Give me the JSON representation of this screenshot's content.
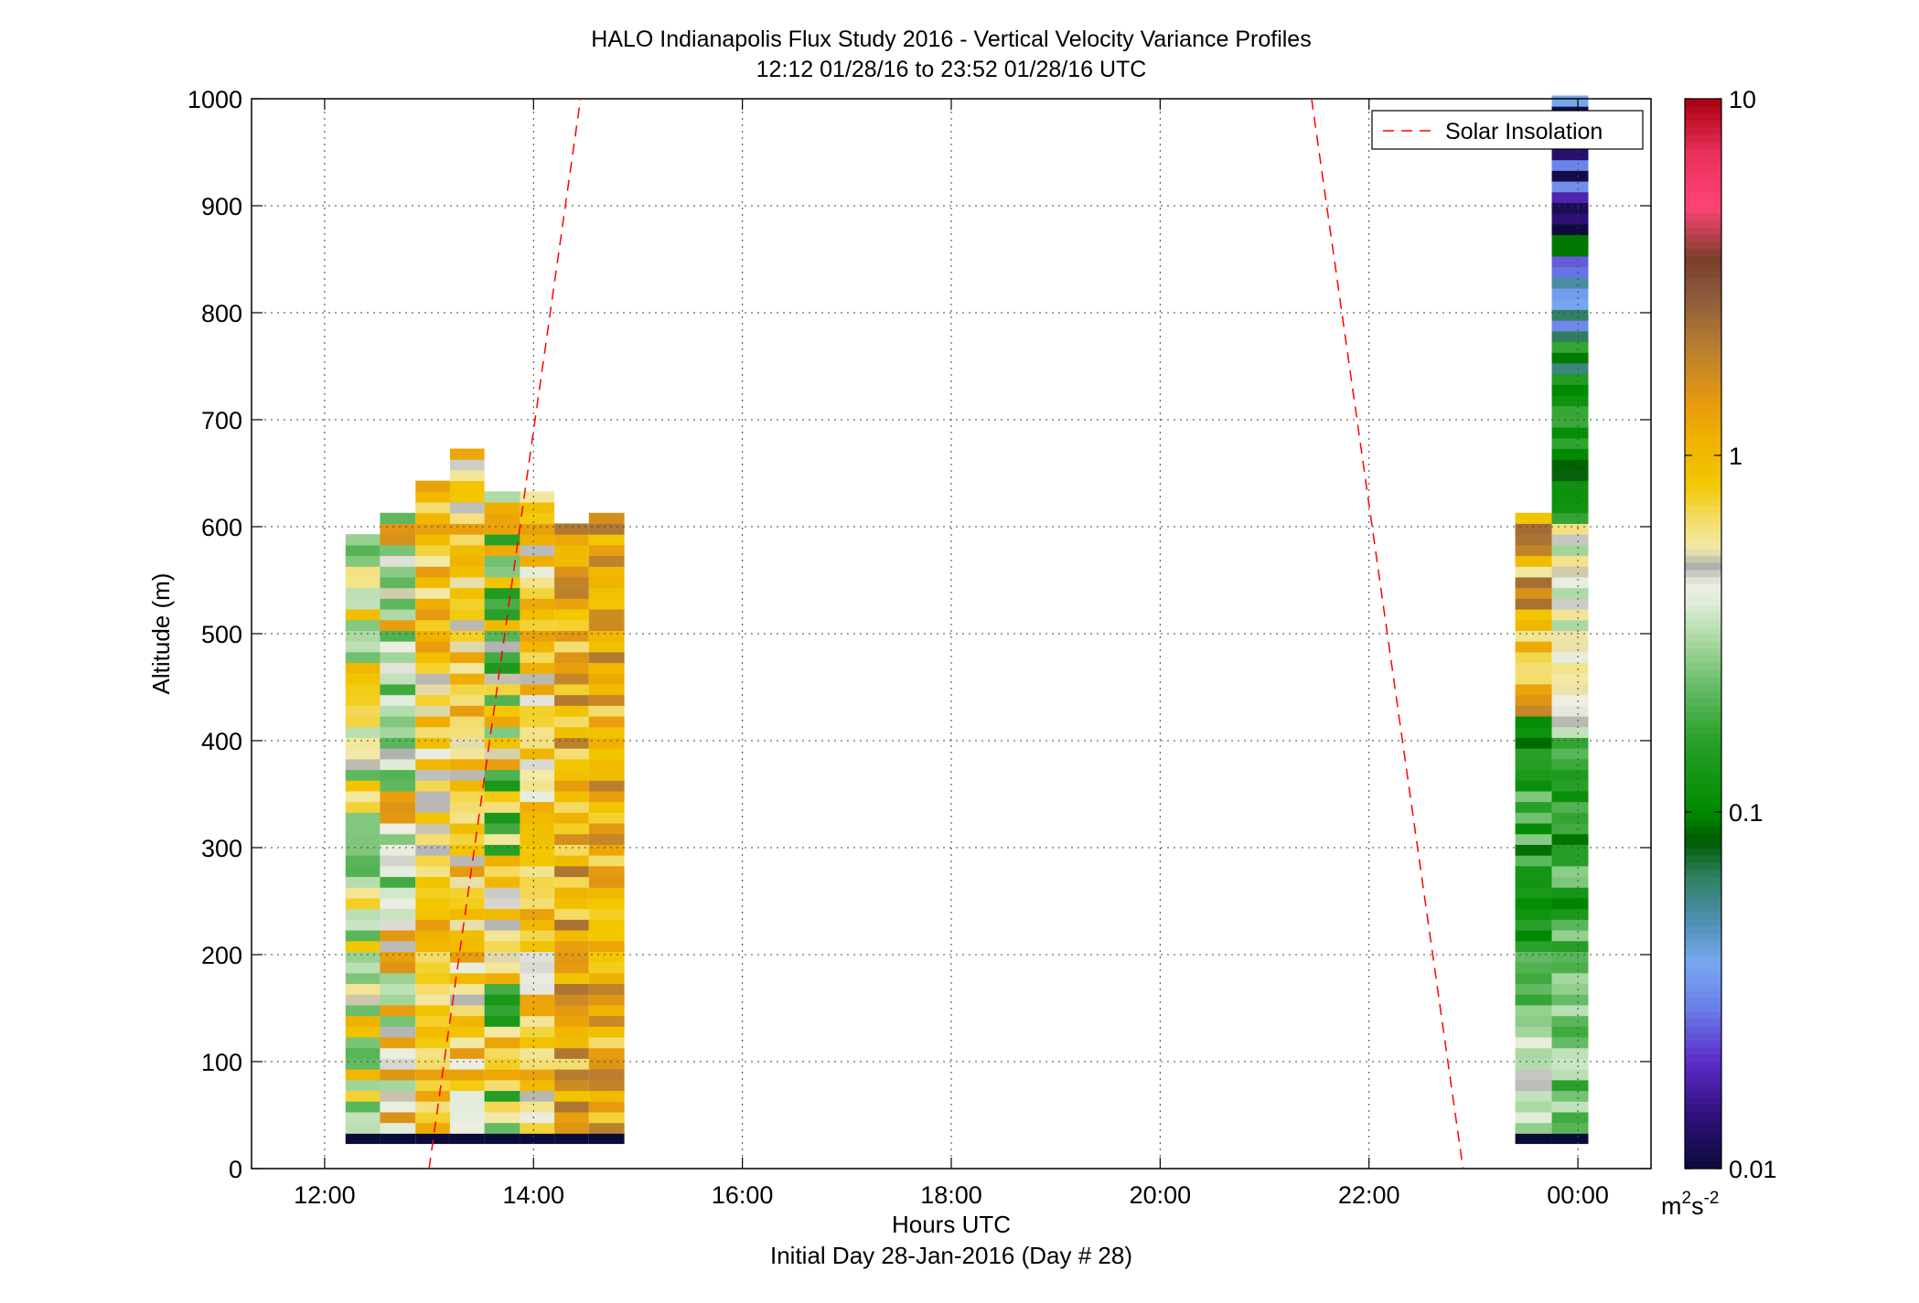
{
  "chart_data": {
    "type": "heatmap",
    "title": "HALO Indianapolis Flux Study 2016 - Vertical Velocity Variance Profiles",
    "subtitle": "12:12 01/28/16 to 23:52 01/28/16  UTC",
    "xlabel": "Hours UTC",
    "xlabel2": "Initial Day 28-Jan-2016 (Day # 28)",
    "ylabel": "Altitude (m)",
    "xlim": [
      11.3,
      24.7
    ],
    "ylim": [
      0,
      1000
    ],
    "x_ticks": [
      12,
      14,
      16,
      18,
      20,
      22,
      24
    ],
    "x_tick_labels": [
      "12:00",
      "14:00",
      "16:00",
      "18:00",
      "20:00",
      "22:00",
      "00:00"
    ],
    "y_ticks": [
      0,
      100,
      200,
      300,
      400,
      500,
      600,
      700,
      800,
      900,
      1000
    ],
    "y_tick_labels": [
      "0",
      "100",
      "200",
      "300",
      "400",
      "500",
      "600",
      "700",
      "800",
      "900",
      "1000"
    ],
    "grid": true,
    "colorbar": {
      "scale": "log",
      "range": [
        0.01,
        10
      ],
      "tick_values": [
        0.01,
        0.1,
        1,
        10
      ],
      "tick_labels": [
        "0.01",
        "0.1",
        "1",
        "10"
      ],
      "units_base": "m",
      "units_sup1": "2",
      "units_mid": "s",
      "units_sup2": "-2"
    },
    "legend": {
      "label": "Solar Insolation",
      "position": "top-right",
      "color": "#ff0000",
      "style": "dashed"
    },
    "series": [
      {
        "name": "Solar Insolation",
        "type": "line",
        "segments": [
          {
            "x": [
              13.0,
              14.45
            ],
            "y": [
              0,
              1000
            ]
          },
          {
            "x": [
              21.45,
              22.9
            ],
            "y": [
              1000,
              0
            ]
          }
        ]
      },
      {
        "type": "heatmap_profiles",
        "profiles": [
          {
            "x_start": 12.2,
            "x_end": 12.53,
            "bottom": 33,
            "top": 585,
            "seed": 1,
            "style": "mixed"
          },
          {
            "x_start": 12.53,
            "x_end": 12.87,
            "bottom": 33,
            "top": 610,
            "seed": 2,
            "style": "green"
          },
          {
            "x_start": 12.87,
            "x_end": 13.2,
            "bottom": 33,
            "top": 635,
            "seed": 3,
            "style": "yellow"
          },
          {
            "x_start": 13.2,
            "x_end": 13.53,
            "bottom": 33,
            "top": 667,
            "seed": 4,
            "style": "yellow"
          },
          {
            "x_start": 13.53,
            "x_end": 13.87,
            "bottom": 33,
            "top": 625,
            "seed": 5,
            "style": "mixedgreen"
          },
          {
            "x_start": 13.87,
            "x_end": 14.2,
            "bottom": 33,
            "top": 625,
            "seed": 6,
            "style": "yellow"
          },
          {
            "x_start": 14.2,
            "x_end": 14.53,
            "bottom": 33,
            "top": 602,
            "seed": 7,
            "style": "orange"
          },
          {
            "x_start": 14.53,
            "x_end": 14.87,
            "bottom": 33,
            "top": 610,
            "seed": 8,
            "style": "orange"
          },
          {
            "x_start": 23.4,
            "x_end": 23.75,
            "bottom": 33,
            "top": 610,
            "seed": 9,
            "style": "darkgreen"
          },
          {
            "x_start": 23.75,
            "x_end": 24.1,
            "bottom": 33,
            "top": 1000,
            "seed": 10,
            "style": "highgreen"
          }
        ]
      }
    ]
  }
}
